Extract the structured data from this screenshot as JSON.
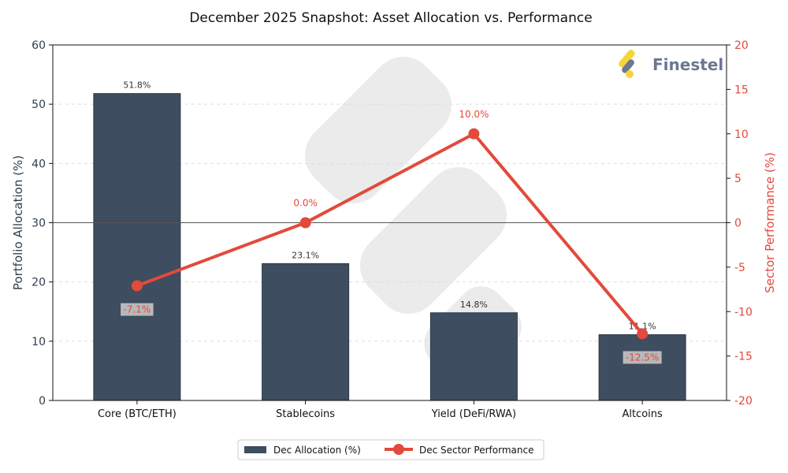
{
  "chart_data": {
    "type": "bar+line",
    "title": "December 2025 Snapshot: Asset Allocation vs. Performance",
    "categories": [
      "Core (BTC/ETH)",
      "Stablecoins",
      "Yield (DeFi/RWA)",
      "Altcoins"
    ],
    "series": [
      {
        "name": "Dec Allocation (%)",
        "type": "bar",
        "axis": "left",
        "values": [
          51.8,
          23.1,
          14.8,
          11.1
        ],
        "labels": [
          "51.8%",
          "23.1%",
          "14.8%",
          "11.1%"
        ],
        "color": "#3e4d5f"
      },
      {
        "name": "Dec Sector Performance",
        "type": "line",
        "axis": "right",
        "values": [
          -7.1,
          0.0,
          10.0,
          -12.5
        ],
        "labels": [
          "-7.1%",
          "0.0%",
          "10.0%",
          "-12.5%"
        ],
        "color": "#e24a3b"
      }
    ],
    "ylabel": "Portfolio Allocation (%)",
    "ylabel_right": "Sector Performance (%)",
    "ylim": [
      0,
      60
    ],
    "ylim_right": [
      -20,
      20
    ],
    "yticks": [
      0,
      10,
      20,
      30,
      40,
      50,
      60
    ],
    "yticks_right": [
      -20,
      -15,
      -10,
      -5,
      0,
      5,
      10,
      15,
      20
    ],
    "grid": "horizontal dashed",
    "legend": "bottom-center"
  },
  "logo": {
    "text": "Finestel"
  }
}
